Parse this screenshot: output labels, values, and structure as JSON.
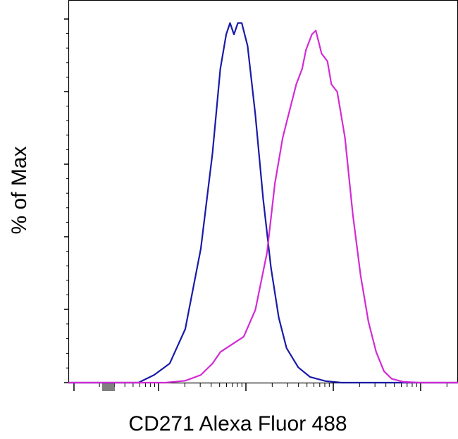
{
  "chart_data": {
    "type": "line",
    "title": "",
    "xlabel": "CD271 Alexa Fluor 488",
    "ylabel": "% of Max",
    "x_scale": "log",
    "y_tick_labels": false,
    "x_tick_labels": false,
    "grid": false,
    "legend": "none",
    "series": [
      {
        "color": "#1a1aa8",
        "points": [
          [
            0.0,
            0
          ],
          [
            0.1,
            0
          ],
          [
            0.18,
            0
          ],
          [
            0.22,
            2
          ],
          [
            0.26,
            5
          ],
          [
            0.3,
            14
          ],
          [
            0.34,
            35
          ],
          [
            0.37,
            60
          ],
          [
            0.39,
            82
          ],
          [
            0.405,
            91
          ],
          [
            0.415,
            94
          ],
          [
            0.425,
            91
          ],
          [
            0.435,
            94
          ],
          [
            0.445,
            94
          ],
          [
            0.46,
            88
          ],
          [
            0.48,
            70
          ],
          [
            0.5,
            48
          ],
          [
            0.52,
            30
          ],
          [
            0.54,
            17
          ],
          [
            0.56,
            9
          ],
          [
            0.59,
            4
          ],
          [
            0.62,
            1.5
          ],
          [
            0.66,
            0.4
          ],
          [
            0.7,
            0
          ],
          [
            1.0,
            0
          ]
        ]
      },
      {
        "color": "#d32ad6",
        "points": [
          [
            0.0,
            0
          ],
          [
            0.25,
            0
          ],
          [
            0.3,
            0.5
          ],
          [
            0.34,
            2
          ],
          [
            0.37,
            5
          ],
          [
            0.39,
            8
          ],
          [
            0.42,
            10
          ],
          [
            0.45,
            12
          ],
          [
            0.48,
            19
          ],
          [
            0.51,
            34
          ],
          [
            0.53,
            52
          ],
          [
            0.55,
            64
          ],
          [
            0.57,
            72
          ],
          [
            0.585,
            78
          ],
          [
            0.6,
            82
          ],
          [
            0.61,
            87
          ],
          [
            0.625,
            91
          ],
          [
            0.635,
            92
          ],
          [
            0.65,
            86
          ],
          [
            0.665,
            84
          ],
          [
            0.675,
            78
          ],
          [
            0.69,
            76
          ],
          [
            0.71,
            64
          ],
          [
            0.73,
            44
          ],
          [
            0.75,
            28
          ],
          [
            0.77,
            16
          ],
          [
            0.79,
            8
          ],
          [
            0.81,
            3
          ],
          [
            0.83,
            1
          ],
          [
            0.86,
            0.2
          ],
          [
            0.9,
            0
          ],
          [
            1.0,
            0
          ]
        ]
      }
    ]
  }
}
